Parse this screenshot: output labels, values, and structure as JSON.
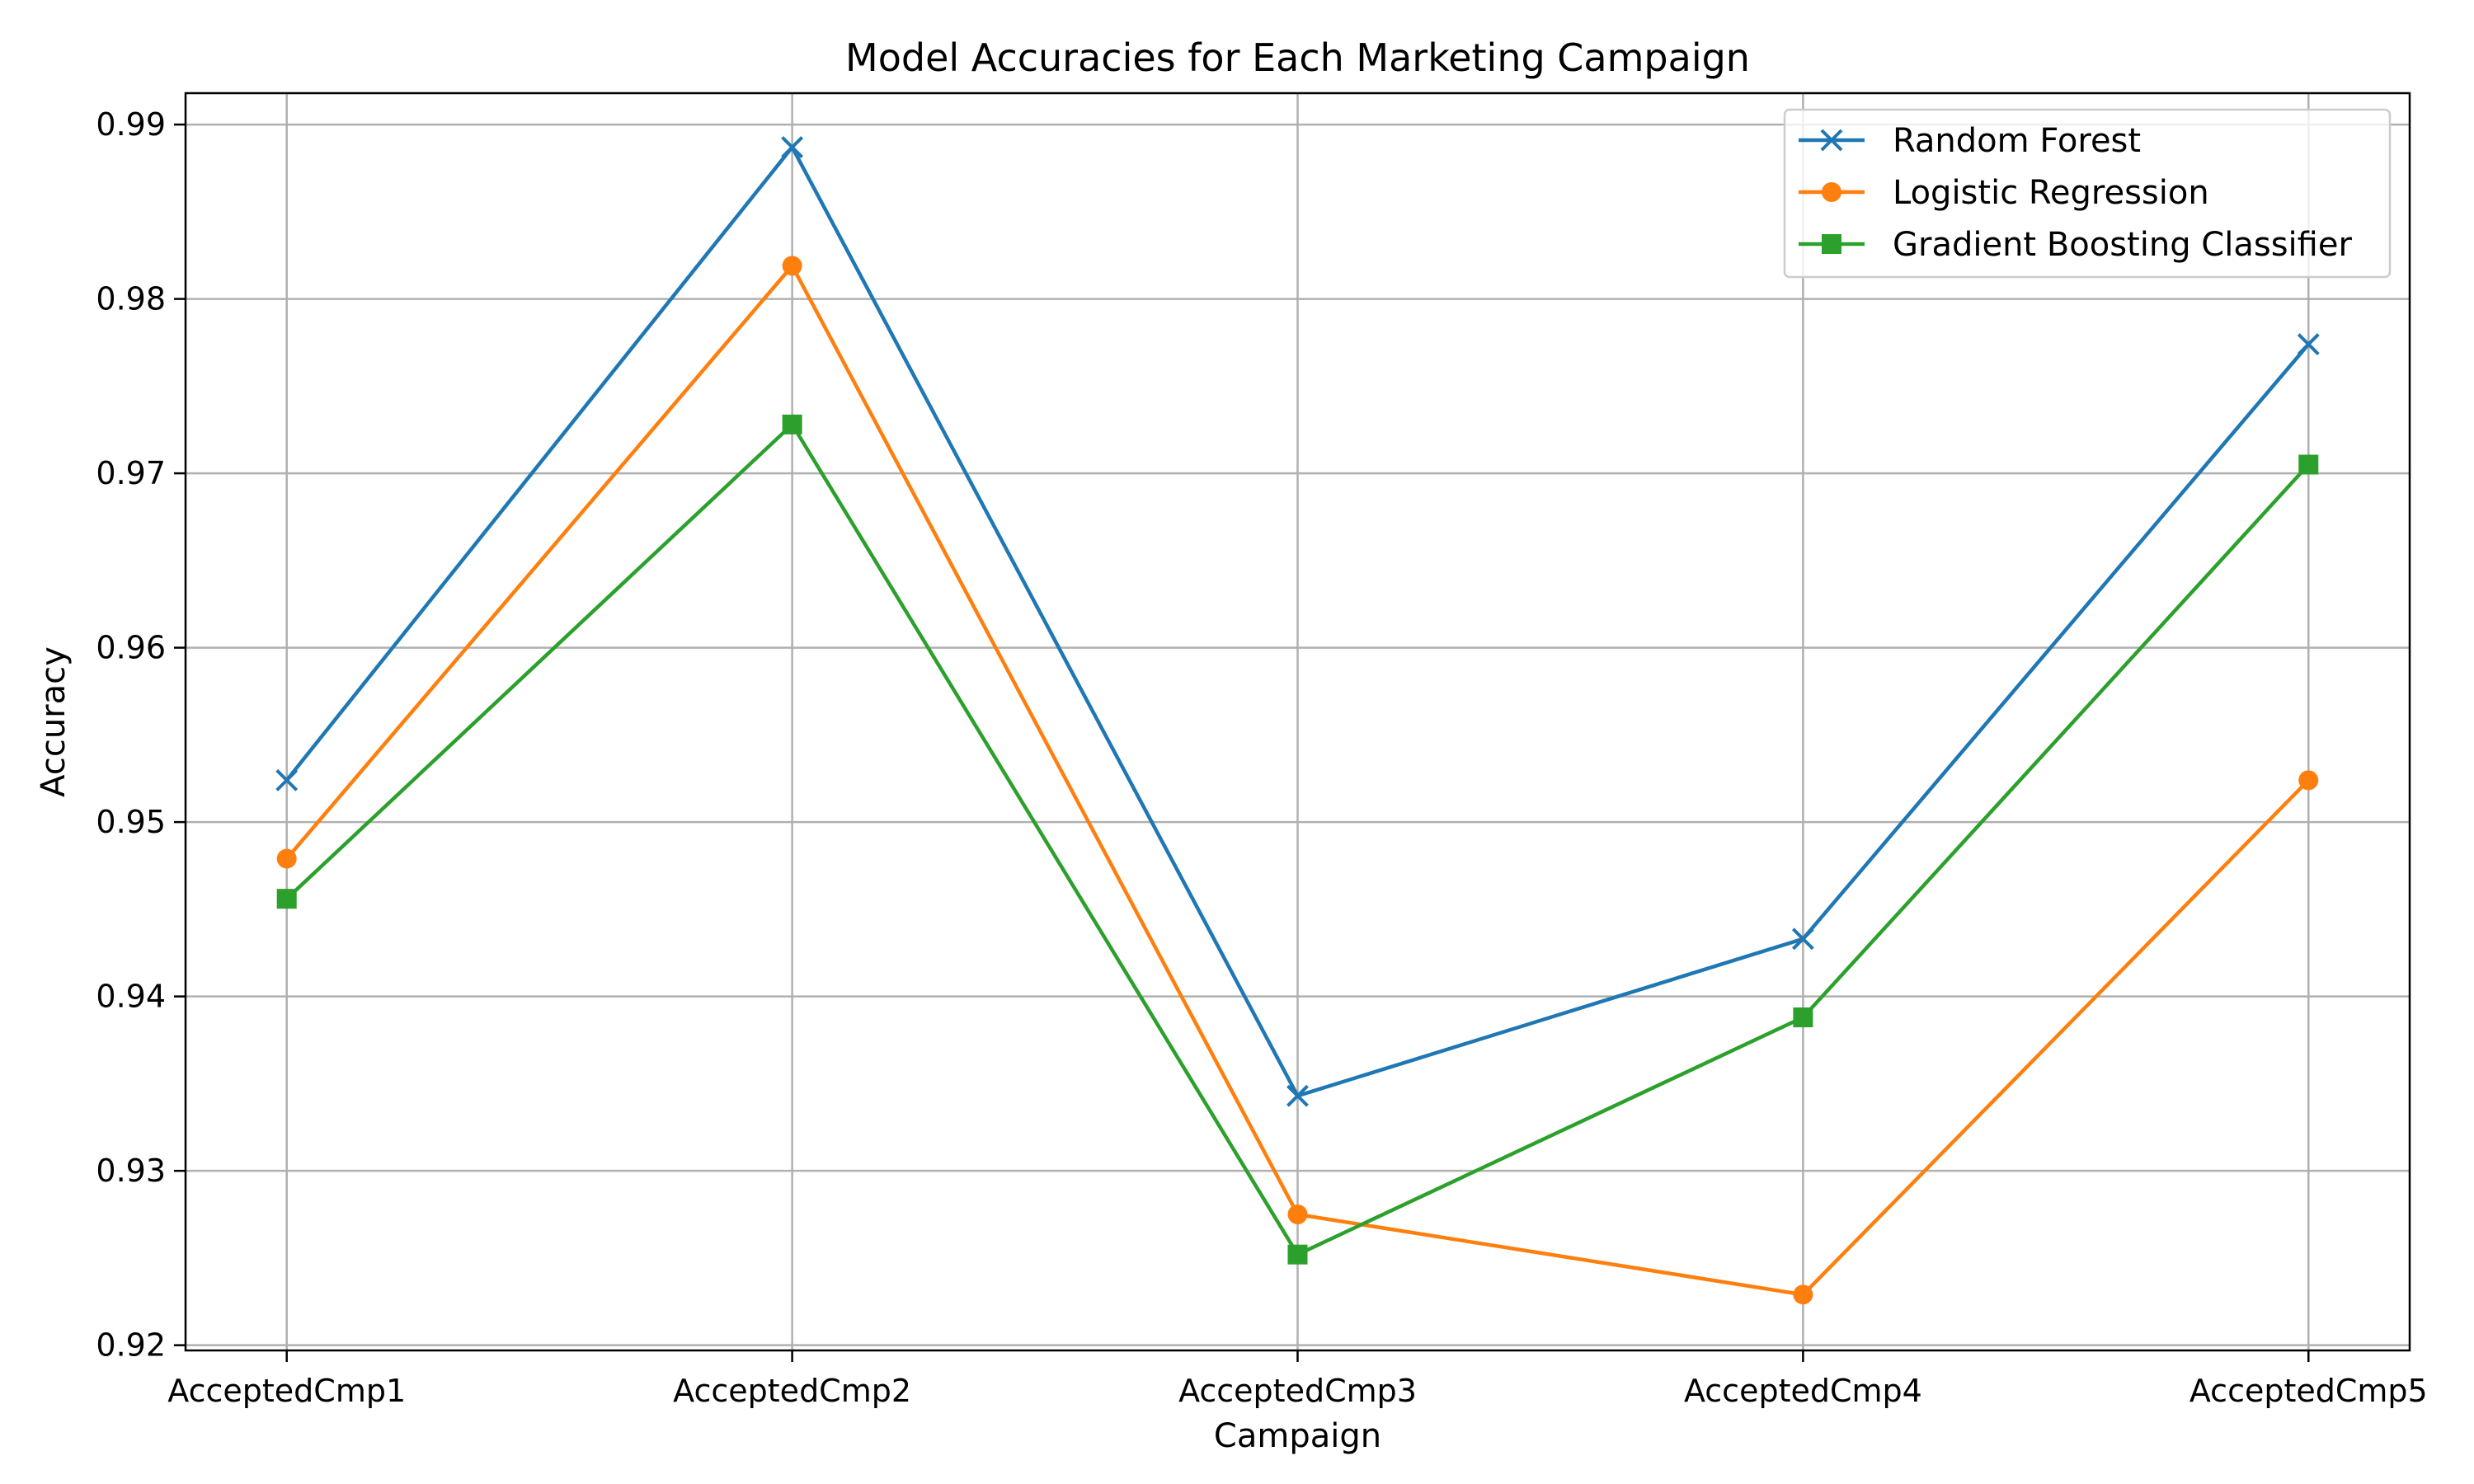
{
  "chart_data": {
    "type": "line",
    "title": "Model Accuracies for Each Marketing Campaign",
    "xlabel": "Campaign",
    "ylabel": "Accuracy",
    "categories": [
      "AcceptedCmp1",
      "AcceptedCmp2",
      "AcceptedCmp3",
      "AcceptedCmp4",
      "AcceptedCmp5"
    ],
    "ylim": [
      0.9197,
      0.9918
    ],
    "yticks": [
      0.92,
      0.93,
      0.94,
      0.95,
      0.96,
      0.97,
      0.98,
      0.99
    ],
    "ytick_labels": [
      "0.92",
      "0.93",
      "0.94",
      "0.95",
      "0.96",
      "0.97",
      "0.98",
      "0.99"
    ],
    "grid": true,
    "legend_position": "top-right",
    "series": [
      {
        "name": "Random Forest",
        "color": "#1f77b4",
        "marker": "x",
        "values": [
          0.9524,
          0.9887,
          0.9343,
          0.9433,
          0.9774
        ]
      },
      {
        "name": "Logistic Regression",
        "color": "#ff7f0e",
        "marker": "circle",
        "values": [
          0.9479,
          0.9819,
          0.9275,
          0.9229,
          0.9524
        ]
      },
      {
        "name": "Gradient Boosting Classifier",
        "color": "#2ca02c",
        "marker": "square",
        "values": [
          0.9456,
          0.9728,
          0.9252,
          0.9388,
          0.9705
        ]
      }
    ]
  }
}
